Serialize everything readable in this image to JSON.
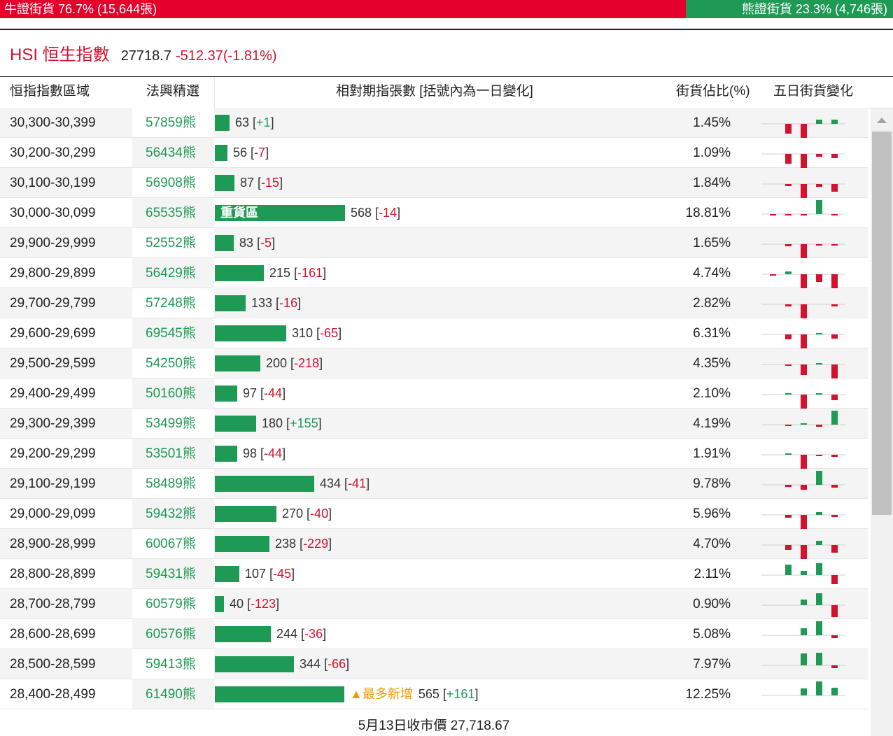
{
  "ratio": {
    "bull_label": "牛證街貨 76.7% (15,644張)",
    "bear_label": "熊證街貨 23.3% (4,746張)",
    "bull_fraction": 0.767,
    "bull_color": "#e4002b",
    "bear_color": "#1f9a55"
  },
  "index": {
    "symbol": "HSI 恒生指數",
    "value": "27718.7",
    "change": "-512.37(-1.81%)"
  },
  "columns": {
    "range": "恒指指數區域",
    "pick": "法興精選",
    "contracts": "相對期指張數 [括號內為一日變化]",
    "share": "街貨佔比(%)",
    "trend": "五日街貨變化"
  },
  "rows": [
    {
      "range": "30,300-30,399",
      "code": "57859熊",
      "count": 63,
      "label": "63",
      "delta": "+1",
      "pct": "1.45%",
      "five": [
        0,
        -1,
        -1.4,
        0.4,
        0.4
      ]
    },
    {
      "range": "30,200-30,299",
      "code": "56434熊",
      "count": 56,
      "label": "56",
      "delta": "-7",
      "pct": "1.09%",
      "five": [
        0,
        -1,
        -1.4,
        -0.3,
        -0.4
      ]
    },
    {
      "range": "30,100-30,199",
      "code": "56908熊",
      "count": 87,
      "label": "87",
      "delta": "-15",
      "pct": "1.84%",
      "five": [
        0,
        -0.2,
        -1.4,
        -0.3,
        -0.8
      ]
    },
    {
      "range": "30,000-30,099",
      "code": "65535熊",
      "count": 568,
      "label": "568",
      "delta": "-14",
      "pct": "18.81%",
      "tag_in_bar": "重貨區",
      "five": [
        -0.1,
        -0.1,
        -0.1,
        1.4,
        -0.1
      ]
    },
    {
      "range": "29,900-29,999",
      "code": "52552熊",
      "count": 83,
      "label": "83",
      "delta": "-5",
      "pct": "1.65%",
      "five": [
        0,
        -0.2,
        -1.4,
        -0.1,
        -0.1
      ]
    },
    {
      "range": "29,800-29,899",
      "code": "56429熊",
      "count": 215,
      "label": "215",
      "delta": "-161",
      "pct": "4.74%",
      "five": [
        -0.1,
        0.3,
        -1.4,
        -0.8,
        -1.4
      ]
    },
    {
      "range": "29,700-29,799",
      "code": "57248熊",
      "count": 133,
      "label": "133",
      "delta": "-16",
      "pct": "2.82%",
      "five": [
        0,
        -0.2,
        -1.4,
        0,
        -0.2
      ]
    },
    {
      "range": "29,600-29,699",
      "code": "69545熊",
      "count": 310,
      "label": "310",
      "delta": "-65",
      "pct": "6.31%",
      "five": [
        0,
        -0.5,
        -1.4,
        0.1,
        -0.4
      ]
    },
    {
      "range": "29,500-29,599",
      "code": "54250熊",
      "count": 200,
      "label": "200",
      "delta": "-218",
      "pct": "4.35%",
      "five": [
        0,
        -0.1,
        -1.1,
        0.1,
        -1.4
      ]
    },
    {
      "range": "29,400-29,499",
      "code": "50160熊",
      "count": 97,
      "label": "97",
      "delta": "-44",
      "pct": "2.10%",
      "five": [
        0,
        0.1,
        -1.4,
        0.1,
        -0.6
      ]
    },
    {
      "range": "29,300-29,399",
      "code": "53499熊",
      "count": 180,
      "label": "180",
      "delta": "+155",
      "pct": "4.19%",
      "five": [
        0,
        -0.1,
        0.1,
        -0.2,
        1.4
      ]
    },
    {
      "range": "29,200-29,299",
      "code": "53501熊",
      "count": 98,
      "label": "98",
      "delta": "-44",
      "pct": "1.91%",
      "five": [
        0,
        0.1,
        -1.4,
        -0.1,
        -0.2
      ]
    },
    {
      "range": "29,100-29,199",
      "code": "58489熊",
      "count": 434,
      "label": "434",
      "delta": "-41",
      "pct": "9.78%",
      "five": [
        0,
        -0.2,
        -0.5,
        1.4,
        -0.3
      ]
    },
    {
      "range": "29,000-29,099",
      "code": "59432熊",
      "count": 270,
      "label": "270",
      "delta": "-40",
      "pct": "5.96%",
      "five": [
        0,
        -0.3,
        -1.4,
        0.3,
        -0.2
      ]
    },
    {
      "range": "28,900-28,999",
      "code": "60067熊",
      "count": 238,
      "label": "238",
      "delta": "-229",
      "pct": "4.70%",
      "five": [
        0,
        -0.5,
        -1.4,
        0.4,
        -0.8
      ]
    },
    {
      "range": "28,800-28,899",
      "code": "59431熊",
      "count": 107,
      "label": "107",
      "delta": "-45",
      "pct": "2.11%",
      "five": [
        0,
        1.1,
        0.4,
        1.2,
        -0.9
      ]
    },
    {
      "range": "28,700-28,799",
      "code": "60579熊",
      "count": 40,
      "label": "40",
      "delta": "-123",
      "pct": "0.90%",
      "five": [
        0,
        0,
        0.6,
        1.2,
        -1.2
      ]
    },
    {
      "range": "28,600-28,699",
      "code": "60576熊",
      "count": 244,
      "label": "244",
      "delta": "-36",
      "pct": "5.08%",
      "five": [
        0,
        0,
        0.7,
        1.4,
        -0.3
      ]
    },
    {
      "range": "28,500-28,599",
      "code": "59413熊",
      "count": 344,
      "label": "344",
      "delta": "-66",
      "pct": "7.97%",
      "five": [
        0,
        0,
        1.2,
        1.3,
        -0.3
      ]
    },
    {
      "range": "28,400-28,499",
      "code": "61490熊",
      "count": 565,
      "label": "565",
      "delta": "+161",
      "pct": "12.25%",
      "tag_after_bar": "▲最多新增",
      "five": [
        0,
        0,
        0.7,
        1.4,
        0.8
      ]
    }
  ],
  "footer": "5月13日收市價 27,718.67",
  "colors": {
    "up": "#1f9a55",
    "down": "#d4112e",
    "highlight": "#f29a00"
  }
}
